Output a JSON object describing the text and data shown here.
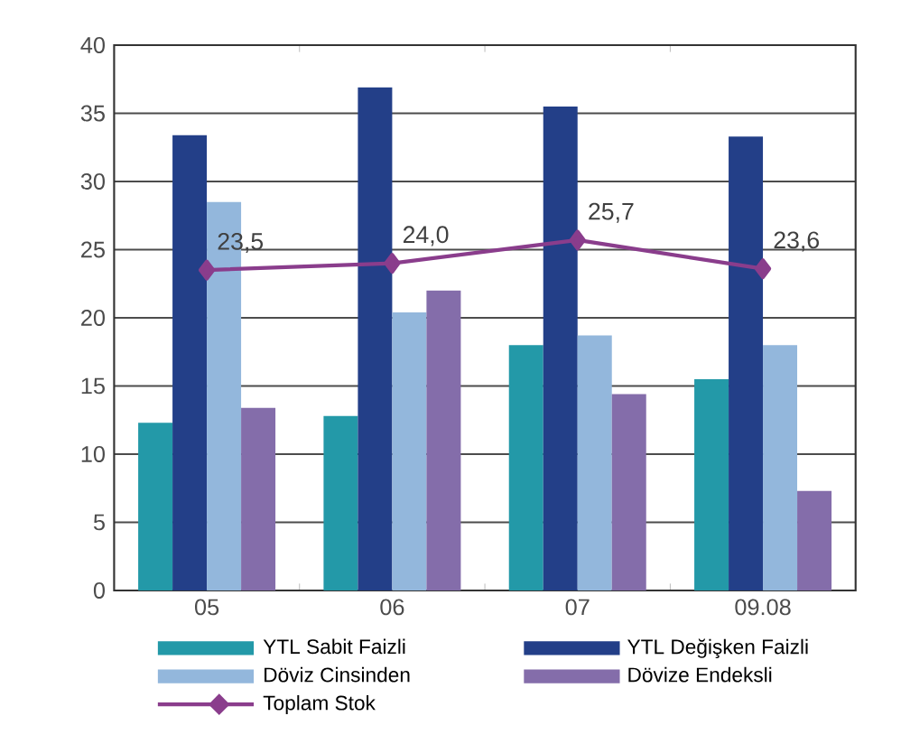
{
  "chart_data": {
    "type": "bar",
    "categories": [
      "05",
      "06",
      "07",
      "09.08"
    ],
    "series": [
      {
        "name": "YTL Sabit Faizli",
        "color": "#2399a8",
        "values": [
          12.3,
          12.8,
          18.0,
          15.5
        ]
      },
      {
        "name": "YTL Değişken Faizli",
        "color": "#233f88",
        "values": [
          33.4,
          36.9,
          35.5,
          33.3
        ]
      },
      {
        "name": "Döviz Cinsinden",
        "color": "#93b7dc",
        "values": [
          28.5,
          20.4,
          18.7,
          18.0
        ]
      },
      {
        "name": "Dövize Endeksli",
        "color": "#846daa",
        "values": [
          13.4,
          22.0,
          14.4,
          7.3
        ]
      },
      {
        "name": "Toplam Stok",
        "type": "line",
        "color": "#8a3d8c",
        "marker": "diamond",
        "values": [
          23.5,
          24.0,
          25.7,
          23.6
        ],
        "value_labels": [
          "23,5",
          "24,0",
          "25,7",
          "23,6"
        ]
      }
    ],
    "ylim": [
      0,
      40
    ],
    "yticks": [
      0,
      5,
      10,
      15,
      20,
      25,
      30,
      35,
      40
    ],
    "grid": "y",
    "legend": "bottom"
  }
}
